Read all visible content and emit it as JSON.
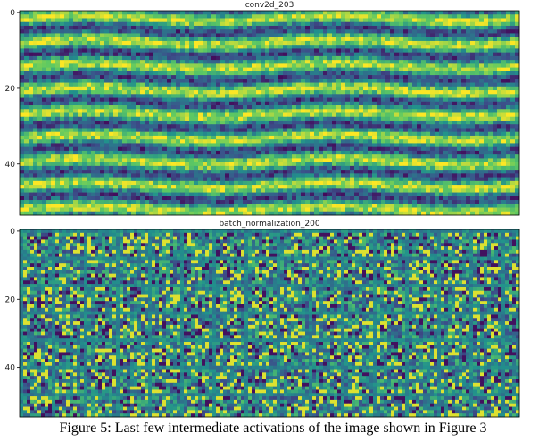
{
  "panels": [
    {
      "title": "conv2d_203",
      "ylim": [
        -0.5,
        53.5
      ],
      "yticks": [
        0,
        20,
        40
      ]
    },
    {
      "title": "batch_normalization_200",
      "ylim": [
        -0.5,
        54.5
      ],
      "yticks": [
        0,
        20,
        40
      ]
    }
  ],
  "caption": "Figure 5: Last few intermediate activations of the image shown in Figure 3"
}
